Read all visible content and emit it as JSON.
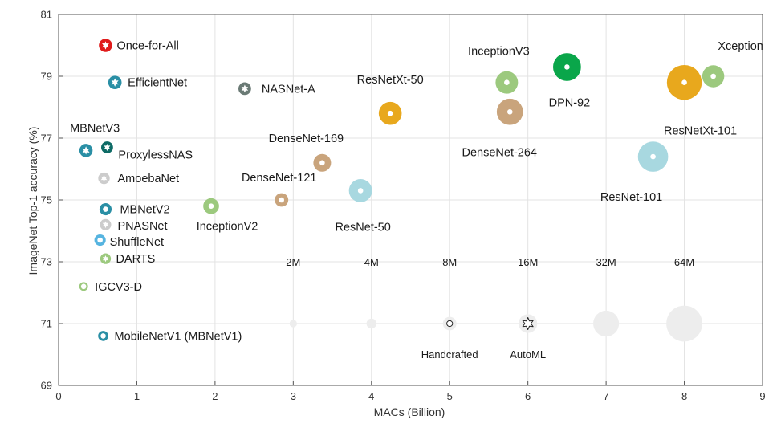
{
  "chart_data": {
    "type": "scatter",
    "subtype": "bubble",
    "title": "",
    "xlabel": "MACs (Billion)",
    "ylabel": "ImageNet Top-1 accuracy (%)",
    "xlim": [
      0,
      9
    ],
    "ylim": [
      69,
      81
    ],
    "xticks": [
      "0",
      "1",
      "2",
      "3",
      "4",
      "5",
      "6",
      "7",
      "8",
      "9"
    ],
    "yticks": [
      "69",
      "71",
      "73",
      "75",
      "77",
      "79",
      "81"
    ],
    "grid": true,
    "points": [
      {
        "name": "Once-for-All",
        "macs": 0.6,
        "acc": 80.0,
        "params_m": 7.7,
        "method": "AutoML",
        "color": "#e01b1b"
      },
      {
        "name": "EfficientNet",
        "macs": 0.72,
        "acc": 78.8,
        "params_m": 7.8,
        "method": "AutoML",
        "color": "#2a8fa5"
      },
      {
        "name": "NASNet-A",
        "macs": 2.38,
        "acc": 78.6,
        "params_m": 6.9,
        "method": "AutoML",
        "color": "#6a7a75"
      },
      {
        "name": "MBNetV3",
        "macs": 0.35,
        "acc": 76.6,
        "params_m": 7.6,
        "method": "AutoML",
        "color": "#2a8fa5"
      },
      {
        "name": "ProxylessNAS",
        "macs": 0.62,
        "acc": 76.7,
        "params_m": 6.0,
        "method": "AutoML",
        "color": "#0e6b66"
      },
      {
        "name": "AmoebaNet",
        "macs": 0.58,
        "acc": 75.7,
        "params_m": 5.6,
        "method": "AutoML",
        "color": "#cccccc"
      },
      {
        "name": "MBNetV2",
        "macs": 0.6,
        "acc": 74.7,
        "params_m": 6.3,
        "method": "Handcrafted",
        "color": "#2a8fa5"
      },
      {
        "name": "PNASNet",
        "macs": 0.6,
        "acc": 74.2,
        "params_m": 5.3,
        "method": "AutoML",
        "color": "#cccccc"
      },
      {
        "name": "ShuffleNet",
        "macs": 0.53,
        "acc": 73.7,
        "params_m": 5.4,
        "method": "Handcrafted",
        "color": "#56b4e0"
      },
      {
        "name": "DARTS",
        "macs": 0.6,
        "acc": 73.1,
        "params_m": 4.7,
        "method": "AutoML",
        "color": "#9cc97e"
      },
      {
        "name": "IGCV3-D",
        "macs": 0.32,
        "acc": 72.2,
        "params_m": 3.0,
        "method": "Handcrafted",
        "color": "#9cc97e"
      },
      {
        "name": "MobileNetV1 (MBNetV1)",
        "macs": 0.57,
        "acc": 70.6,
        "params_m": 4.2,
        "method": "Handcrafted",
        "color": "#2a8fa5"
      },
      {
        "name": "InceptionV2",
        "macs": 1.95,
        "acc": 74.8,
        "params_m": 11.2,
        "method": "Handcrafted",
        "color": "#9cc97e"
      },
      {
        "name": "DenseNet-121",
        "macs": 2.85,
        "acc": 75.0,
        "params_m": 8.0,
        "method": "Handcrafted",
        "color": "#c9a47c"
      },
      {
        "name": "DenseNet-169",
        "macs": 3.37,
        "acc": 76.2,
        "params_m": 14.3,
        "method": "Handcrafted",
        "color": "#c9a47c"
      },
      {
        "name": "ResNet-50",
        "macs": 3.86,
        "acc": 75.3,
        "params_m": 25.5,
        "method": "Handcrafted",
        "color": "#a8d8e0"
      },
      {
        "name": "ResNetXt-50",
        "macs": 4.24,
        "acc": 77.8,
        "params_m": 25.0,
        "method": "Handcrafted",
        "color": "#e8a81d"
      },
      {
        "name": "InceptionV3",
        "macs": 5.73,
        "acc": 78.8,
        "params_m": 23.8,
        "method": "Handcrafted",
        "color": "#9cc97e"
      },
      {
        "name": "DenseNet-264",
        "macs": 5.77,
        "acc": 77.85,
        "params_m": 33.3,
        "method": "Handcrafted",
        "color": "#c9a47c"
      },
      {
        "name": "DPN-92",
        "macs": 6.5,
        "acc": 79.3,
        "params_m": 37.7,
        "method": "Handcrafted",
        "color": "#0aa64a"
      },
      {
        "name": "ResNet-101",
        "macs": 7.6,
        "acc": 76.4,
        "params_m": 44.6,
        "method": "Handcrafted",
        "color": "#a8d8e0"
      },
      {
        "name": "ResNetXt-101",
        "macs": 8.0,
        "acc": 78.8,
        "params_m": 60.0,
        "method": "Handcrafted",
        "color": "#e8a81d"
      },
      {
        "name": "Xception",
        "macs": 8.37,
        "acc": 79.0,
        "params_m": 22.9,
        "method": "Handcrafted",
        "color": "#9cc97e"
      }
    ],
    "size_legend": {
      "title": "",
      "labels": [
        "2M",
        "4M",
        "8M",
        "16M",
        "32M",
        "64M"
      ],
      "params_m": [
        2,
        4,
        8,
        16,
        32,
        64
      ],
      "x": [
        3,
        4,
        5,
        6,
        7,
        8
      ],
      "y": 71,
      "color": "#ededed"
    },
    "marker_legend": {
      "items": [
        {
          "label": "Handcrafted",
          "marker": "dot"
        },
        {
          "label": "AutoML",
          "marker": "star"
        }
      ]
    },
    "colors": {
      "grid": "#e3e3e3",
      "axis": "#555555",
      "legend_bubble": "#ededed"
    }
  }
}
